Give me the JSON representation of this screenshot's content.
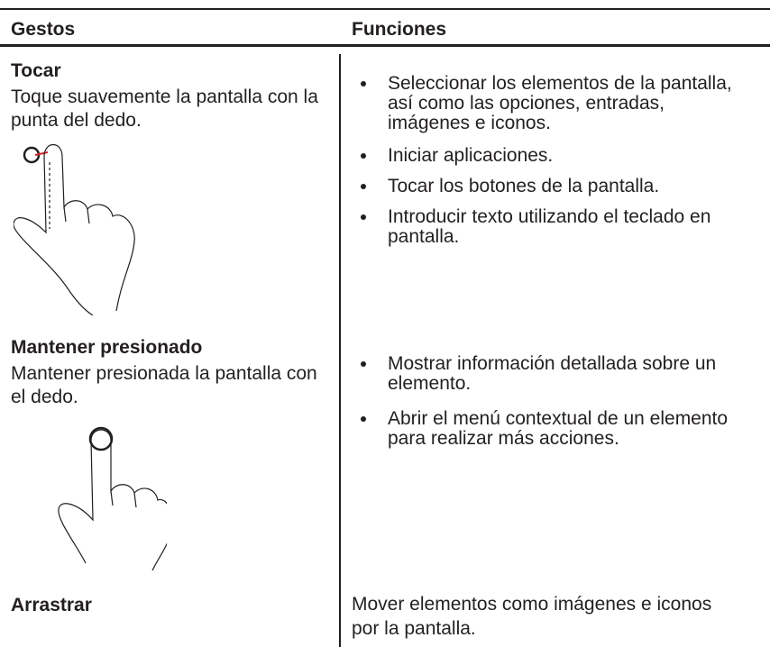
{
  "table": {
    "headers": [
      "Gestos",
      "Funciones"
    ],
    "rows": [
      {
        "gesture": "Tocar",
        "description": "Toque suavemente la pantalla con la punta del dedo.",
        "functions": [
          "Seleccionar los elementos de la pantalla, así como las opciones, entradas, imágenes e iconos.",
          "Iniciar aplicaciones.",
          "Tocar los botones de la pantalla.",
          "Introducir texto utilizando el teclado en pantalla."
        ]
      },
      {
        "gesture": "Mantener presionado",
        "description": "Mantener presionada la pantalla con el dedo.",
        "functions": [
          "Mostrar información detallada sobre un elemento.",
          "Abrir el menú contextual de un elemento para realizar más acciones."
        ]
      },
      {
        "gesture": "Arrastrar",
        "function_text": "Mover elementos como imágenes e iconos por la pantalla."
      }
    ]
  }
}
